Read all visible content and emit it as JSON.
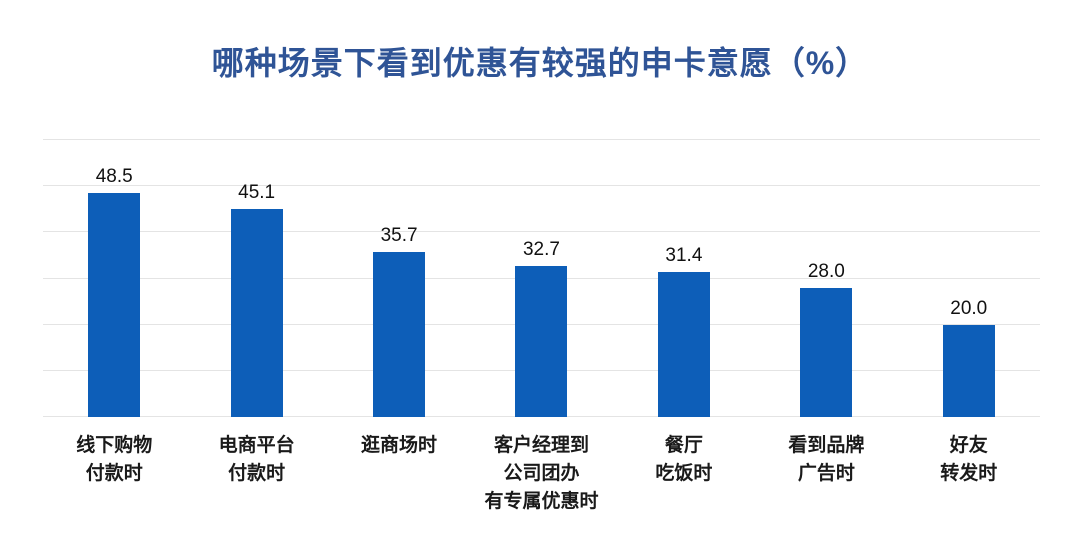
{
  "colors": {
    "bar": "#0d5eb8",
    "title": "#2f5496",
    "gridline": "#e4e4e4",
    "value_label": "#111111",
    "category_label": "#1a1a1a",
    "background": "#ffffff"
  },
  "chart_data": {
    "type": "bar",
    "title": "哪种场景下看到优惠有较强的申卡意愿（%）",
    "categories": [
      "线下购物\n付款时",
      "电商平台\n付款时",
      "逛商场时",
      "客户经理到\n公司团办\n有专属优惠时",
      "餐厅\n吃饭时",
      "看到品牌\n广告时",
      "好友\n转发时"
    ],
    "values": [
      48.5,
      45.1,
      35.7,
      32.7,
      31.4,
      28.0,
      20.0
    ],
    "value_labels": [
      "48.5",
      "45.1",
      "35.7",
      "32.7",
      "31.4",
      "28.0",
      "20.0"
    ],
    "xlabel": "",
    "ylabel": "",
    "ylim": [
      0,
      60
    ],
    "grid": true,
    "gridline_interval": 10,
    "y_tick_labels_shown": false,
    "legend": "none"
  }
}
